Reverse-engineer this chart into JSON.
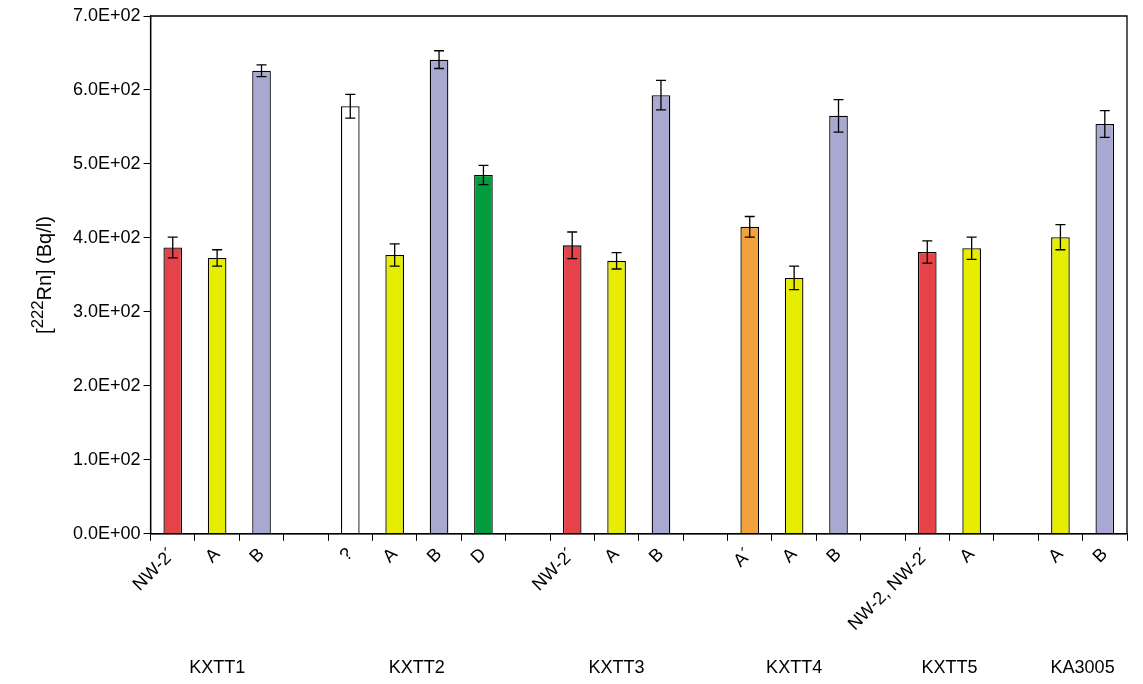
{
  "chart_data": {
    "type": "bar",
    "ylabel": "[$^{222}$Rn] (Bq/l)",
    "categories": [
      "NW-2´",
      "A",
      "B",
      null,
      "?",
      "A",
      "B",
      "D",
      null,
      "NW-2´",
      "A",
      "B",
      null,
      "A´",
      "A",
      "B",
      null,
      "NW-2, NW-2´",
      "A",
      null,
      "A",
      "B"
    ],
    "values": [
      387,
      373,
      626,
      null,
      578,
      377,
      641,
      485,
      null,
      390,
      369,
      593,
      null,
      415,
      346,
      565,
      null,
      381,
      386,
      null,
      401,
      554
    ],
    "errors": [
      14,
      11,
      8,
      null,
      16,
      15,
      12,
      13,
      null,
      18,
      11,
      20,
      null,
      14,
      16,
      22,
      null,
      15,
      15,
      null,
      17,
      18
    ],
    "colors": [
      "#e5424a",
      "#e6ed00",
      "#a8a8d0",
      null,
      "#ffffff",
      "#e6ed00",
      "#a8a8d0",
      "#009c3e",
      null,
      "#e5424a",
      "#e6ed00",
      "#a8a8d0",
      null,
      "#f0a23c",
      "#e6ed00",
      "#a8a8d0",
      null,
      "#e5424a",
      "#e6ed00",
      null,
      "#e6ed00",
      "#a8a8d0"
    ],
    "ylim": [
      0,
      700
    ],
    "yticks": [
      {
        "value": 0,
        "label": "0.0E+00"
      },
      {
        "value": 100,
        "label": "1.0E+02"
      },
      {
        "value": 200,
        "label": "2.0E+02"
      },
      {
        "value": 300,
        "label": "3.0E+02"
      },
      {
        "value": 400,
        "label": "4.0E+02"
      },
      {
        "value": 500,
        "label": "5.0E+02"
      },
      {
        "value": 600,
        "label": "6.0E+02"
      },
      {
        "value": 700,
        "label": "7.0E+02"
      }
    ],
    "grid": false,
    "legend": false,
    "annotations": [
      "KXTT1",
      "KXTT2",
      "KXTT3",
      "KXTT4",
      "KXTT5",
      "KA3005"
    ]
  }
}
